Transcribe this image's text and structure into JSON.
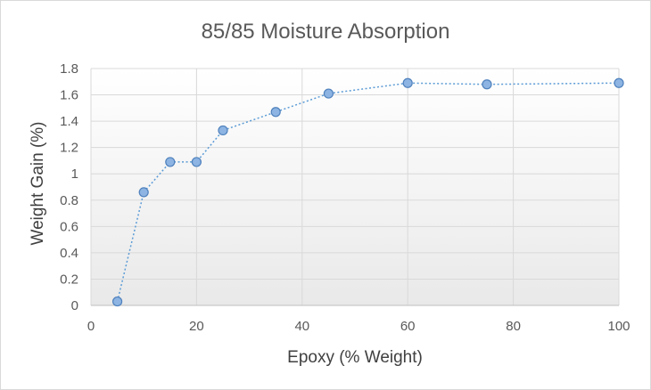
{
  "chart_data": {
    "type": "scatter",
    "title": "85/85 Moisture Absorption",
    "xlabel": "Epoxy (% Weight)",
    "ylabel": "Weight Gain (%)",
    "xlim": [
      0,
      100
    ],
    "ylim": [
      0,
      1.8
    ],
    "x_ticks": [
      "0",
      "20",
      "40",
      "60",
      "80",
      "100"
    ],
    "y_ticks": [
      "0",
      "0.2",
      "0.4",
      "0.6",
      "0.8",
      "1",
      "1.2",
      "1.4",
      "1.6",
      "1.8"
    ],
    "grid": true,
    "line_style": "dotted",
    "marker_color": "#8db4e2",
    "marker_edge_color": "#4f81bd",
    "line_color": "#5b9bd5",
    "series": [
      {
        "x": [
          5,
          10,
          15,
          20,
          25,
          35,
          45,
          60,
          75,
          100
        ],
        "y": [
          0.03,
          0.86,
          1.09,
          1.09,
          1.33,
          1.47,
          1.61,
          1.69,
          1.68,
          1.69
        ]
      }
    ]
  }
}
